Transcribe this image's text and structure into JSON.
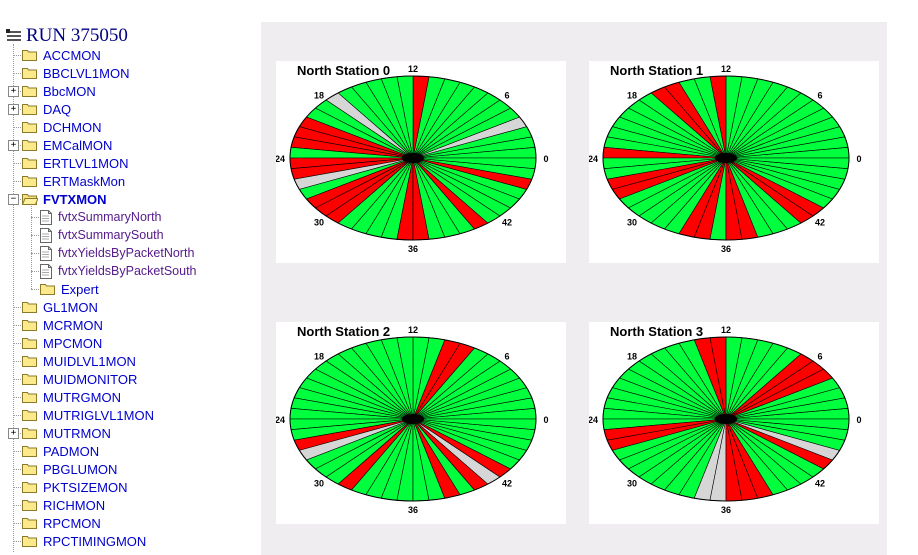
{
  "tree": {
    "run_title": "RUN 375050",
    "items": [
      {
        "label": "ACCMON",
        "expander": false
      },
      {
        "label": "BBCLVL1MON",
        "expander": false
      },
      {
        "label": "BbcMON",
        "expander": true
      },
      {
        "label": "DAQ",
        "expander": true
      },
      {
        "label": "DCHMON",
        "expander": false
      },
      {
        "label": "EMCalMON",
        "expander": true
      },
      {
        "label": "ERTLVL1MON",
        "expander": false
      },
      {
        "label": "ERTMaskMon",
        "expander": false
      },
      {
        "label": "FVTXMON",
        "expander": true,
        "open": true
      },
      {
        "label": "fvtxSummaryNorth",
        "child": true,
        "doc": true
      },
      {
        "label": "fvtxSummarySouth",
        "child": true,
        "doc": true
      },
      {
        "label": "fvtxYieldsByPacketNorth",
        "child": true,
        "doc": true
      },
      {
        "label": "fvtxYieldsByPacketSouth",
        "child": true,
        "doc": true
      },
      {
        "label": "Expert",
        "child": true,
        "doc": false
      },
      {
        "label": "GL1MON",
        "expander": false
      },
      {
        "label": "MCRMON",
        "expander": false
      },
      {
        "label": "MPCMON",
        "expander": false
      },
      {
        "label": "MUIDLVL1MON",
        "expander": false
      },
      {
        "label": "MUIDMONITOR",
        "expander": false
      },
      {
        "label": "MUTRGMON",
        "expander": false
      },
      {
        "label": "MUTRIGLVL1MON",
        "expander": false
      },
      {
        "label": "MUTRMON",
        "expander": true
      },
      {
        "label": "PADMON",
        "expander": false
      },
      {
        "label": "PBGLUMON",
        "expander": false
      },
      {
        "label": "PKTSIZEMON",
        "expander": false
      },
      {
        "label": "RICHMON",
        "expander": false
      },
      {
        "label": "RPCMON",
        "expander": false
      },
      {
        "label": "RPCTIMINGMON",
        "expander": false
      }
    ]
  },
  "colors": {
    "ok": "#00ff3c",
    "bad": "#ff0000",
    "off": "#d6d6d6",
    "link": "#0000cc",
    "visited": "#551a8b"
  },
  "charts": [
    {
      "title": "North Station 0",
      "wedge_labels": [
        "12",
        "6",
        "0",
        "42",
        "36",
        "30",
        "24",
        "18"
      ],
      "n_wedges": 48,
      "red": [
        11,
        20,
        21,
        22,
        24,
        25,
        28,
        29,
        30,
        35,
        36,
        40,
        45
      ],
      "gray": [
        3,
        17,
        26
      ]
    },
    {
      "title": "North Station 1",
      "wedge_labels": [
        "12",
        "6",
        "0",
        "42",
        "36",
        "30",
        "24",
        "18"
      ],
      "n_wedges": 48,
      "red": [
        12,
        15,
        16,
        23,
        26,
        27,
        33,
        34,
        36,
        37,
        41,
        42
      ],
      "gray": []
    },
    {
      "title": "North Station 2",
      "wedge_labels": [
        "12",
        "6",
        "0",
        "42",
        "36",
        "30",
        "24",
        "18"
      ],
      "n_wedges": 48,
      "red": [
        8,
        9,
        26,
        31,
        38,
        40,
        42
      ],
      "gray": [
        27,
        41
      ]
    },
    {
      "title": "North Station 3",
      "wedge_labels": [
        "12",
        "6",
        "0",
        "42",
        "36",
        "30",
        "24",
        "18"
      ],
      "n_wedges": 48,
      "red": [
        4,
        5,
        6,
        12,
        13,
        25,
        26,
        36,
        37,
        38,
        43
      ],
      "gray": [
        34,
        35,
        44
      ]
    }
  ]
}
